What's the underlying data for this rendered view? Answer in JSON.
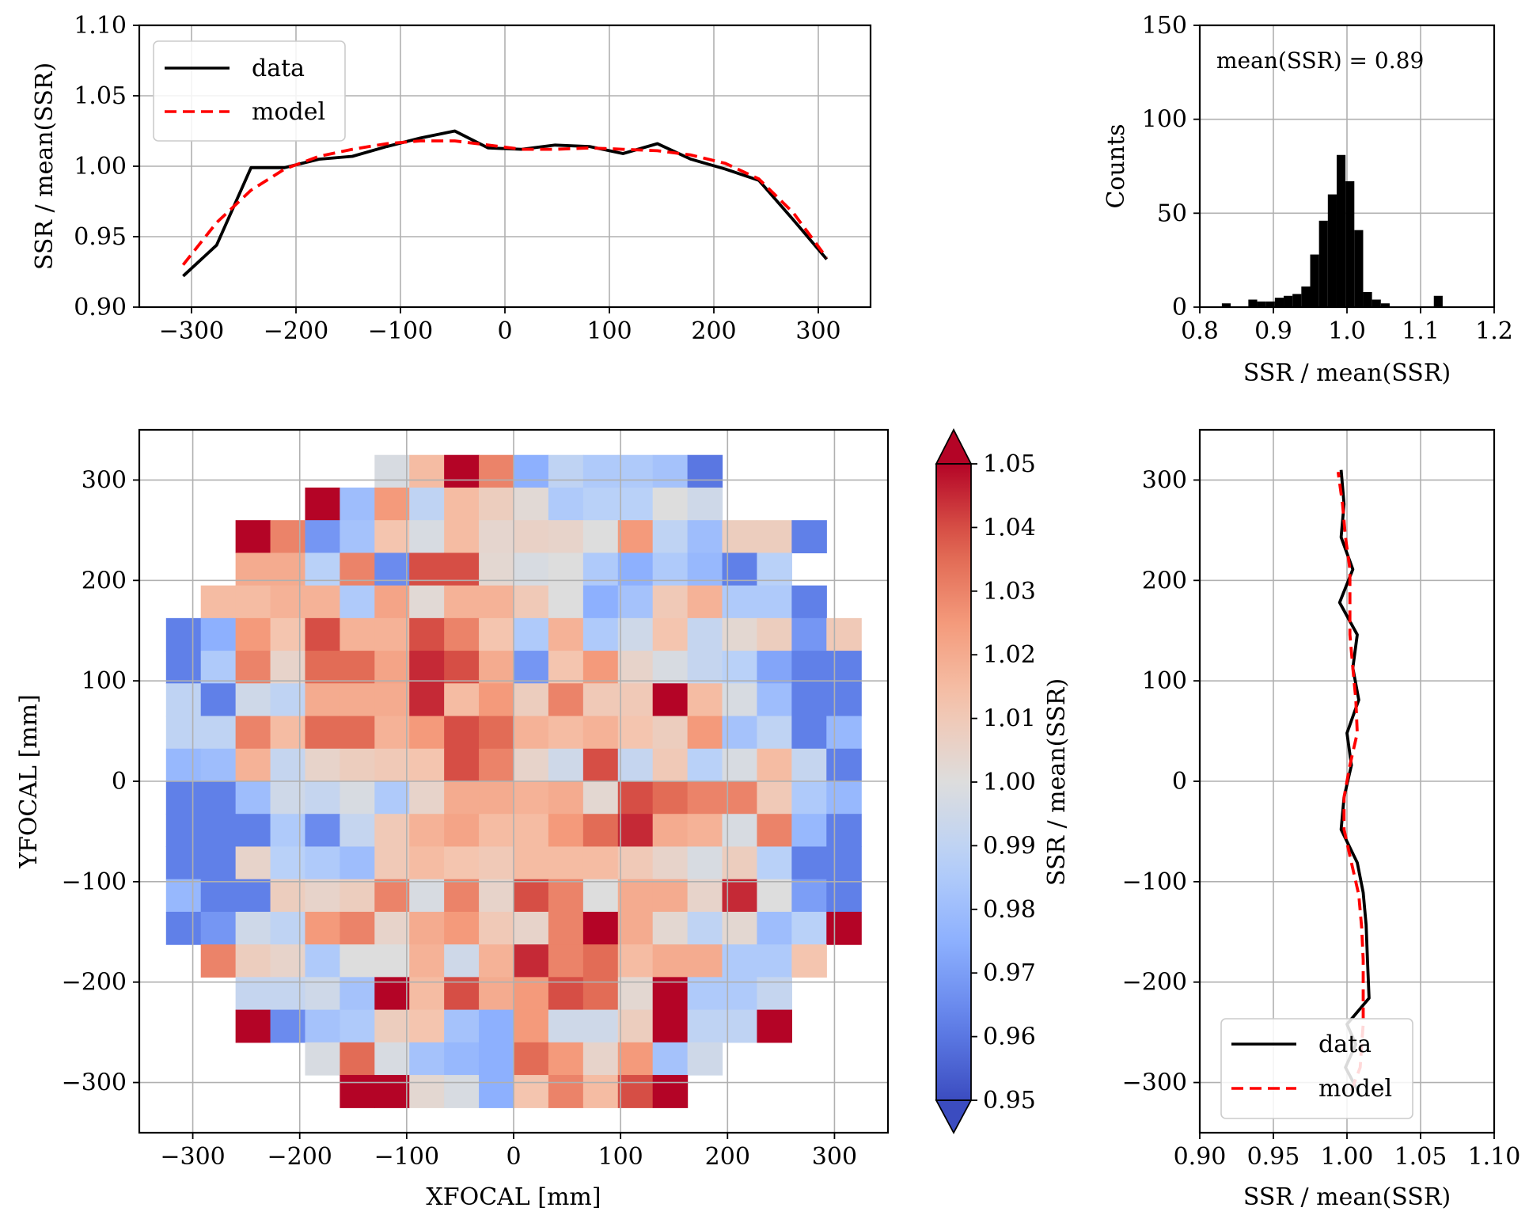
{
  "chart_data": [
    {
      "id": "top-profile",
      "type": "line",
      "title": "",
      "xlabel": "",
      "ylabel": "SSR / mean(SSR)",
      "xlim": [
        -350,
        350
      ],
      "ylim": [
        0.9,
        1.1
      ],
      "xticks": [
        -300,
        -200,
        -100,
        0,
        100,
        200,
        300
      ],
      "xtick_labels": [
        "−300",
        "−200",
        "−100",
        "0",
        "100",
        "200",
        "300"
      ],
      "yticks": [
        0.9,
        0.95,
        1.0,
        1.05,
        1.1
      ],
      "ytick_labels": [
        "0.90",
        "0.95",
        "1.00",
        "1.05",
        "1.10"
      ],
      "grid": true,
      "legend": "top-left",
      "series": [
        {
          "name": "data",
          "color": "#000000",
          "dash": "solid",
          "x": [
            -308,
            -276,
            -243,
            -211,
            -178,
            -146,
            -113,
            -81,
            -48,
            -16,
            16,
            48,
            81,
            113,
            146,
            178,
            211,
            243,
            276,
            308
          ],
          "y": [
            0.922,
            0.944,
            0.999,
            0.999,
            1.005,
            1.007,
            1.014,
            1.02,
            1.025,
            1.013,
            1.012,
            1.015,
            1.014,
            1.009,
            1.016,
            1.005,
            0.998,
            0.99,
            0.962,
            0.934
          ]
        },
        {
          "name": "model",
          "color": "#ff0000",
          "dash": "dashed",
          "x": [
            -308,
            -276,
            -243,
            -211,
            -178,
            -146,
            -113,
            -81,
            -48,
            -16,
            16,
            48,
            81,
            113,
            146,
            178,
            211,
            243,
            276,
            308
          ],
          "y": [
            0.93,
            0.96,
            0.983,
            0.998,
            1.007,
            1.012,
            1.016,
            1.018,
            1.018,
            1.015,
            1.012,
            1.012,
            1.013,
            1.012,
            1.011,
            1.008,
            1.002,
            0.991,
            0.967,
            0.935
          ]
        }
      ]
    },
    {
      "id": "histogram",
      "type": "bar",
      "title": "",
      "xlabel": "SSR / mean(SSR)",
      "ylabel": "Counts",
      "xlim": [
        0.8,
        1.2
      ],
      "ylim": [
        0,
        150
      ],
      "xticks": [
        0.8,
        0.9,
        1.0,
        1.1,
        1.2
      ],
      "xtick_labels": [
        "0.8",
        "0.9",
        "1.0",
        "1.1",
        "1.2"
      ],
      "yticks": [
        0,
        50,
        100,
        150
      ],
      "ytick_labels": [
        "0",
        "50",
        "100",
        "150"
      ],
      "grid": true,
      "annotation": "mean(SSR) = 0.89",
      "bin_edges": [
        0.83,
        0.842,
        0.854,
        0.866,
        0.878,
        0.89,
        0.902,
        0.914,
        0.926,
        0.938,
        0.95,
        0.962,
        0.974,
        0.986,
        0.998,
        1.01,
        1.022,
        1.034,
        1.046,
        1.058,
        1.07,
        1.082,
        1.094,
        1.106,
        1.118,
        1.13
      ],
      "values": [
        2,
        0,
        0,
        4,
        3,
        3,
        5,
        6,
        7,
        11,
        28,
        46,
        60,
        81,
        67,
        41,
        8,
        4,
        2,
        0,
        0,
        0,
        0,
        0,
        6
      ],
      "color": "#000000"
    },
    {
      "id": "focal-heatmap",
      "type": "heatmap",
      "title": "",
      "xlabel": "XFOCAL [mm]",
      "ylabel": "YFOCAL [mm]",
      "xlim": [
        -350,
        350
      ],
      "ylim": [
        -350,
        350
      ],
      "xticks": [
        -300,
        -200,
        -100,
        0,
        100,
        200,
        300
      ],
      "xtick_labels": [
        "−300",
        "−200",
        "−100",
        "0",
        "100",
        "200",
        "300"
      ],
      "yticks": [
        -300,
        -200,
        -100,
        0,
        100,
        200,
        300
      ],
      "ytick_labels": [
        "−300",
        "−200",
        "−100",
        "0",
        "100",
        "200",
        "300"
      ],
      "grid": true,
      "colormap": "coolwarm",
      "vmin": 0.95,
      "vmax": 1.05,
      "x_start": -325,
      "y_start": -325,
      "cell_size": 32.5,
      "nrows": 20,
      "ncols": 20,
      "row_order": "top_to_bottom",
      "rows": [
        [
          null,
          null,
          null,
          null,
          null,
          null,
          0.998,
          1.015,
          1.05,
          1.03,
          0.975,
          0.99,
          0.985,
          0.985,
          0.982,
          0.96,
          null,
          null,
          null,
          null
        ],
        [
          null,
          null,
          null,
          null,
          1.05,
          0.98,
          1.025,
          0.99,
          1.015,
          1.008,
          1.002,
          0.985,
          0.988,
          0.988,
          1.0,
          0.995,
          null,
          null,
          null,
          null
        ],
        [
          null,
          null,
          1.05,
          1.03,
          0.968,
          0.982,
          1.012,
          0.998,
          1.015,
          1.004,
          1.006,
          1.005,
          1.0,
          1.025,
          0.99,
          0.98,
          1.008,
          1.008,
          0.962,
          null
        ],
        [
          null,
          null,
          1.02,
          1.02,
          0.988,
          1.03,
          0.965,
          1.04,
          1.04,
          1.003,
          0.998,
          1.0,
          0.985,
          0.975,
          0.985,
          0.978,
          0.962,
          0.988,
          null,
          null
        ],
        [
          null,
          1.015,
          1.015,
          1.018,
          1.018,
          0.985,
          1.022,
          1.002,
          1.018,
          1.018,
          1.01,
          1.0,
          0.975,
          0.982,
          1.01,
          1.018,
          0.985,
          0.985,
          0.962,
          null
        ],
        [
          0.962,
          0.975,
          1.025,
          1.012,
          1.04,
          1.018,
          1.018,
          1.04,
          1.03,
          1.012,
          0.985,
          1.018,
          0.985,
          0.995,
          1.012,
          0.992,
          1.003,
          1.008,
          0.968,
          1.01
        ],
        [
          0.962,
          0.985,
          1.03,
          1.005,
          1.035,
          1.035,
          1.022,
          1.045,
          1.04,
          1.02,
          0.968,
          1.012,
          1.025,
          1.005,
          0.998,
          0.992,
          0.988,
          0.972,
          0.962,
          0.962
        ],
        [
          0.99,
          0.962,
          0.995,
          0.99,
          1.02,
          1.02,
          1.02,
          1.045,
          1.015,
          1.025,
          1.008,
          1.03,
          1.01,
          1.01,
          1.05,
          1.015,
          0.998,
          0.98,
          0.962,
          0.962
        ],
        [
          0.99,
          0.99,
          1.03,
          1.015,
          1.035,
          1.035,
          1.018,
          1.025,
          1.04,
          1.035,
          1.018,
          1.015,
          1.018,
          1.012,
          1.008,
          1.025,
          0.982,
          0.99,
          0.962,
          0.978
        ],
        [
          0.978,
          0.98,
          1.018,
          0.992,
          1.005,
          1.008,
          1.01,
          1.012,
          1.04,
          1.03,
          1.005,
          0.995,
          1.04,
          0.992,
          1.01,
          0.988,
          0.998,
          1.015,
          0.992,
          0.962
        ],
        [
          0.962,
          0.962,
          0.98,
          0.995,
          0.992,
          0.998,
          0.985,
          1.005,
          1.02,
          1.02,
          1.018,
          1.02,
          1.003,
          1.04,
          1.035,
          1.03,
          1.03,
          1.01,
          0.985,
          0.978
        ],
        [
          0.962,
          0.962,
          0.962,
          0.985,
          0.965,
          0.992,
          1.01,
          1.018,
          1.022,
          1.015,
          1.015,
          1.025,
          1.035,
          1.045,
          1.02,
          1.018,
          0.998,
          1.03,
          0.978,
          0.962
        ],
        [
          0.962,
          0.962,
          1.005,
          0.988,
          0.985,
          0.98,
          1.01,
          1.015,
          1.012,
          1.01,
          1.015,
          1.015,
          1.015,
          1.01,
          1.005,
          0.998,
          1.008,
          0.988,
          0.962,
          0.962
        ],
        [
          0.978,
          0.962,
          0.962,
          1.008,
          1.005,
          1.008,
          1.03,
          0.998,
          1.03,
          1.005,
          1.04,
          1.03,
          1.0,
          1.02,
          1.02,
          1.005,
          1.045,
          1.0,
          0.97,
          0.962
        ],
        [
          0.962,
          0.968,
          0.995,
          0.99,
          1.025,
          1.03,
          1.005,
          1.02,
          1.025,
          1.01,
          1.005,
          1.03,
          1.05,
          1.02,
          1.003,
          0.99,
          1.003,
          0.98,
          0.988,
          1.05
        ],
        [
          null,
          1.03,
          1.008,
          1.005,
          0.985,
          1.0,
          1.0,
          1.018,
          0.995,
          1.018,
          1.045,
          1.03,
          1.035,
          1.015,
          1.02,
          1.02,
          0.985,
          0.985,
          1.012,
          null
        ],
        [
          null,
          null,
          0.992,
          0.992,
          0.995,
          0.982,
          1.05,
          1.015,
          1.04,
          1.02,
          1.025,
          1.04,
          1.035,
          1.003,
          1.05,
          0.985,
          0.985,
          0.992,
          null,
          null
        ],
        [
          null,
          null,
          1.05,
          0.965,
          0.982,
          0.985,
          1.008,
          1.012,
          0.982,
          0.975,
          1.025,
          0.995,
          0.995,
          1.008,
          1.05,
          0.99,
          0.99,
          1.05,
          null,
          null
        ],
        [
          null,
          null,
          null,
          null,
          0.998,
          1.035,
          0.998,
          0.982,
          0.978,
          0.975,
          1.035,
          1.025,
          1.005,
          1.025,
          0.982,
          0.995,
          null,
          null,
          null,
          null
        ],
        [
          null,
          null,
          null,
          null,
          null,
          1.05,
          1.05,
          1.003,
          0.998,
          0.975,
          1.012,
          1.03,
          1.015,
          1.04,
          1.05,
          null,
          null,
          null,
          null,
          null
        ]
      ],
      "colorbar": {
        "label": "SSR / mean(SSR)",
        "ticks": [
          0.95,
          0.96,
          0.97,
          0.98,
          0.99,
          1.0,
          1.01,
          1.02,
          1.03,
          1.04,
          1.05
        ],
        "tick_labels": [
          "0.95",
          "0.96",
          "0.97",
          "0.98",
          "0.99",
          "1.00",
          "1.01",
          "1.02",
          "1.03",
          "1.04",
          "1.05"
        ],
        "extend": "both"
      }
    },
    {
      "id": "side-profile",
      "type": "line",
      "title": "",
      "xlabel": "SSR / mean(SSR)",
      "ylabel": "",
      "xlim": [
        0.9,
        1.1
      ],
      "ylim": [
        -350,
        350
      ],
      "xticks": [
        0.9,
        0.95,
        1.0,
        1.05,
        1.1
      ],
      "xtick_labels": [
        "0.90",
        "0.95",
        "1.00",
        "1.05",
        "1.10"
      ],
      "yticks": [
        -300,
        -200,
        -100,
        0,
        100,
        200,
        300
      ],
      "ytick_labels": [
        "−300",
        "−200",
        "−100",
        "0",
        "100",
        "200",
        "300"
      ],
      "grid": true,
      "legend": "bottom-right",
      "series": [
        {
          "name": "data",
          "color": "#000000",
          "dash": "solid",
          "x": [
            1.008,
            0.999,
            1.006,
            1.0,
            1.015,
            1.014,
            1.013,
            1.011,
            1.007,
            0.996,
            0.998,
            1.003,
            1.0,
            1.008,
            1.004,
            1.007,
            0.995,
            1.004,
            0.996,
            0.998,
            0.996
          ],
          "y": [
            -310,
            -285,
            -262,
            -242,
            -216,
            -180,
            -143,
            -111,
            -81,
            -48,
            -16,
            16,
            48,
            81,
            113,
            146,
            178,
            211,
            243,
            276,
            310
          ]
        },
        {
          "name": "model",
          "color": "#ff0000",
          "dash": "dashed",
          "x": [
            1.003,
            1.009,
            1.01,
            1.011,
            1.011,
            1.011,
            1.01,
            1.008,
            1.003,
            0.998,
            0.998,
            1.002,
            1.007,
            1.006,
            1.004,
            1.002,
            1.002,
            1.002,
            0.999,
            0.997,
            0.994
          ],
          "y": [
            -308,
            -285,
            -262,
            -242,
            -211,
            -178,
            -146,
            -113,
            -81,
            -48,
            -16,
            16,
            48,
            81,
            113,
            146,
            178,
            211,
            243,
            276,
            308
          ]
        }
      ]
    }
  ]
}
